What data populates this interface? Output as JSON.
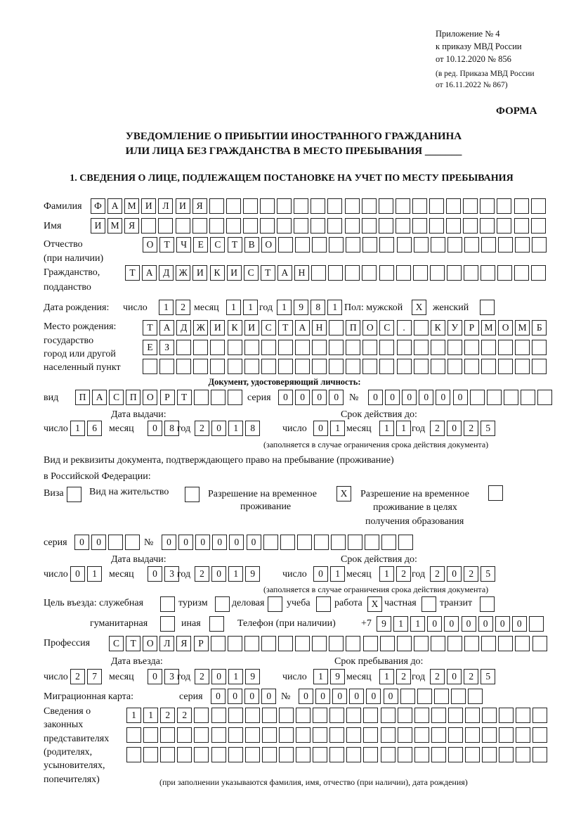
{
  "header": {
    "appendix": "Приложение № 4",
    "order1": "к приказу МВД России",
    "order2": "от 10.12.2020 № 856",
    "edition1": "(в ред. Приказа МВД России",
    "edition2": "от 16.11.2022 № 867)",
    "form": "ФОРМА",
    "title1": "УВЕДОМЛЕНИЕ О ПРИБЫТИИ ИНОСТРАННОГО ГРАЖДАНИНА",
    "title2": "ИЛИ ЛИЦА БЕЗ ГРАЖДАНСТВА В МЕСТО ПРЕБЫВАНИЯ _______",
    "section1": "1. СВЕДЕНИЯ О ЛИЦЕ, ПОДЛЕЖАЩЕМ ПОСТАНОВКЕ НА УЧЕТ ПО МЕСТУ ПРЕБЫВАНИЯ"
  },
  "labels": {
    "surname": "Фамилия",
    "name": "Имя",
    "patronymic1": "Отчество",
    "patronymic2": "(при наличии)",
    "citizenship1": "Гражданство,",
    "citizenship2": "подданство",
    "birth_date": "Дата рождения:",
    "day": "число",
    "month": "месяц",
    "year": "год",
    "sex": "Пол: мужской",
    "female": "женский",
    "birthplace1": "Место рождения:",
    "birthplace2": "государство",
    "birthplace3": "город или другой",
    "birthplace4": "населенный пункт",
    "id_doc": "Документ, удостоверяющий личность:",
    "kind": "вид",
    "series": "серия",
    "number": "№",
    "issue_date": "Дата выдачи:",
    "valid_until": "Срок действия до:",
    "valid_note": "(заполняется в случае ограничения срока действия документа)",
    "right_doc1": "Вид и реквизиты документа, подтверждающего право на пребывание (проживание)",
    "right_doc2": "в Российской Федерации:",
    "visa": "Виза",
    "residence": "Вид на жительство",
    "temp1": "Разрешение на временное",
    "temp2": "проживание",
    "edu1": "Разрешение на временное",
    "edu2": "проживание в целях",
    "edu3": "получения образования",
    "purpose": "Цель въезда: служебная",
    "tourism": "туризм",
    "business": "деловая",
    "study": "учеба",
    "work": "работа",
    "private": "частная",
    "transit": "транзит",
    "humanitarian": "гуманитарная",
    "other": "иная",
    "phone": "Телефон (при наличии)",
    "phone_prefix": "+7",
    "profession": "Профессия",
    "entry_date": "Дата въезда:",
    "stay_until": "Срок пребывания до:",
    "migration_card": "Миграционная карта:",
    "reps1": "Сведения о",
    "reps2": "законных",
    "reps3": "представителях",
    "reps4": "(родителях,",
    "reps5": "усыновителях,",
    "reps6": "попечителях)",
    "reps_note": "(при заполнении указываются фамилия, имя, отчество (при наличии), дата рождения)"
  },
  "values": {
    "surname": "ФАМИЛИЯ",
    "name": "ИМЯ",
    "patronymic": "ОТЧЕСТВО",
    "citizenship": "ТАДЖИКИСТАН",
    "birth_day": "12",
    "birth_month": "11",
    "birth_year": "1981",
    "male": "X",
    "female": "",
    "birthplace1": "ТАДЖИКИСТАН ПОС. КУРМОМБ",
    "birthplace2": "ЕЗ",
    "birthplace3": "",
    "id_kind": "ПАСПОРТ",
    "id_series": "0000",
    "id_number": "000000",
    "id_issue_day": "16",
    "id_issue_month": "08",
    "id_issue_year": "2018",
    "id_valid_day": "01",
    "id_valid_month": "11",
    "id_valid_year": "2025",
    "visa": "",
    "residence": "",
    "temp_residence": "X",
    "edu_residence": "",
    "rd_series": "00",
    "rd_number": "000000",
    "rd_issue_day": "01",
    "rd_issue_month": "03",
    "rd_issue_year": "2019",
    "rd_valid_day": "01",
    "rd_valid_month": "12",
    "rd_valid_year": "2025",
    "p_service": "",
    "p_tourism": "",
    "p_business": "",
    "p_study": "",
    "p_work": "X",
    "p_private": "",
    "p_transit": "",
    "p_humanitarian": "",
    "p_other": "",
    "phone": "911000000",
    "profession": "СТОЛЯР",
    "entry_day": "27",
    "entry_month": "03",
    "entry_year": "2019",
    "stay_day": "19",
    "stay_month": "12",
    "stay_year": "2025",
    "mc_series": "0000",
    "mc_number": "000000",
    "reps1": "1122",
    "reps2": "",
    "reps3": ""
  }
}
